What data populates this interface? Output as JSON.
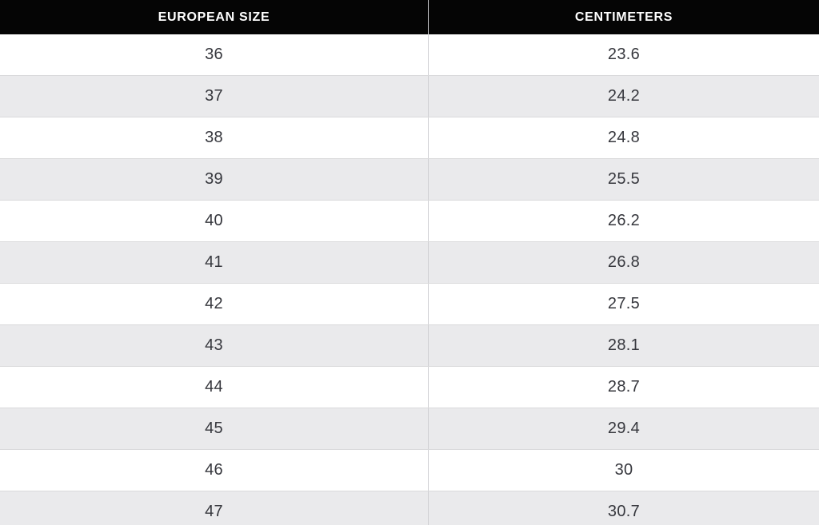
{
  "header": {
    "col1": "EUROPEAN SIZE",
    "col2": "CENTIMETERS"
  },
  "chart_data": {
    "type": "table",
    "title": "European shoe size to centimeters conversion",
    "columns": [
      "EUROPEAN SIZE",
      "CENTIMETERS"
    ],
    "rows": [
      [
        "36",
        "23.6"
      ],
      [
        "37",
        "24.2"
      ],
      [
        "38",
        "24.8"
      ],
      [
        "39",
        "25.5"
      ],
      [
        "40",
        "26.2"
      ],
      [
        "41",
        "26.8"
      ],
      [
        "42",
        "27.5"
      ],
      [
        "43",
        "28.1"
      ],
      [
        "44",
        "28.7"
      ],
      [
        "45",
        "29.4"
      ],
      [
        "46",
        "30"
      ],
      [
        "47",
        "30.7"
      ]
    ]
  },
  "colors": {
    "header_bg": "#050505",
    "header_text": "#ffffff",
    "row_bg": "#ffffff",
    "row_alt_bg": "#eaeaec",
    "cell_text": "#36373d",
    "divider": "#cfcfd2",
    "row_border": "#d9d9db"
  }
}
